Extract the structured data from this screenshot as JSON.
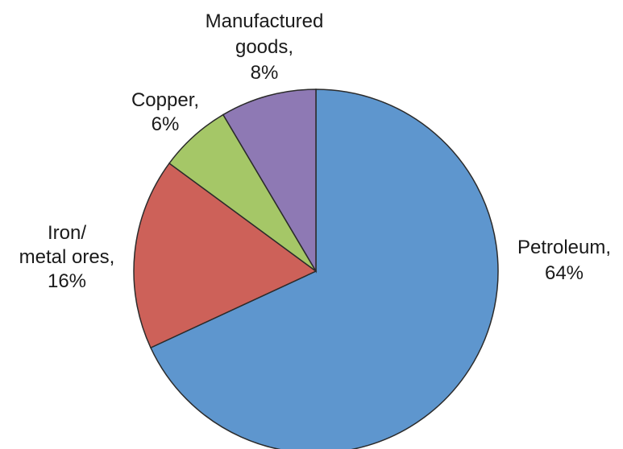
{
  "chart_data": {
    "type": "pie",
    "title": "",
    "start": "12 o'clock",
    "direction": "clockwise",
    "slices": [
      {
        "name": "Petroleum",
        "value": 64,
        "color": "#5e96ce",
        "label_lines": [
          "Petroleum,",
          "64%"
        ]
      },
      {
        "name": "Iron/ metal ores",
        "value": 16,
        "color": "#cd6159",
        "label_lines": [
          "Iron/",
          "metal ores,",
          "16%"
        ]
      },
      {
        "name": "Copper",
        "value": 6,
        "color": "#a5c767",
        "label_lines": [
          "Copper,",
          "6%"
        ]
      },
      {
        "name": "Manufactured goods",
        "value": 8,
        "color": "#8e79b4",
        "label_lines": [
          "Manufactured",
          "goods,",
          "8%"
        ]
      }
    ]
  }
}
